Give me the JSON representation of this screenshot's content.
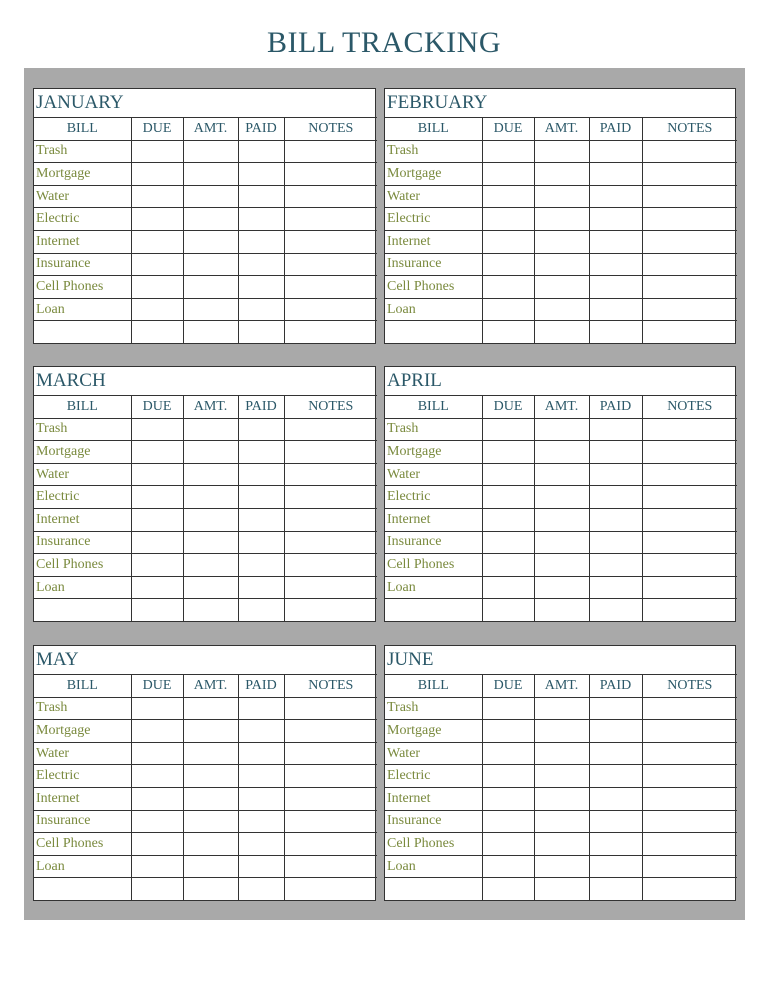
{
  "title": "BILL TRACKING",
  "columns": [
    "BILL",
    "DUE",
    "AMT.",
    "PAID",
    "NOTES"
  ],
  "bills": [
    "Trash",
    "Mortgage",
    "Water",
    "Electric",
    "Internet",
    "Insurance",
    "Cell Phones",
    "Loan",
    ""
  ],
  "months": [
    "JANUARY",
    "FEBRUARY",
    "MARCH",
    "APRIL",
    "MAY",
    "JUNE"
  ],
  "colors": {
    "title": "#2b5868",
    "bill_text": "#7a8a3e",
    "frame": "#a9a9a9"
  }
}
